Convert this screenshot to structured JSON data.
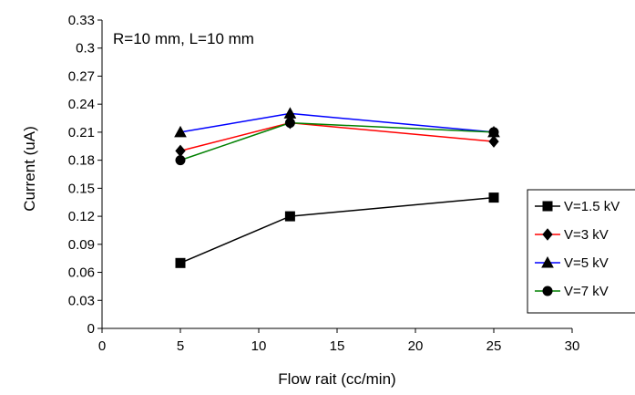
{
  "chart_data": {
    "type": "line",
    "title": "",
    "annotation": "R=10 mm, L=10 mm",
    "xlabel": "Flow rait (cc/min)",
    "ylabel": "Current (uA)",
    "xlim": [
      0,
      30
    ],
    "ylim": [
      0,
      0.33
    ],
    "xticks": [
      "0",
      "5",
      "10",
      "15",
      "20",
      "25",
      "30"
    ],
    "yticks": [
      "0",
      "0.03",
      "0.06",
      "0.09",
      "0.12",
      "0.15",
      "0.18",
      "0.21",
      "0.24",
      "0.27",
      "0.3",
      "0.33"
    ],
    "x": [
      5,
      12,
      25
    ],
    "grid": false,
    "legend_position": "right",
    "series": [
      {
        "name": "V=1.5 kV",
        "values": [
          0.07,
          0.12,
          0.14
        ],
        "color": "#000000",
        "marker": "square"
      },
      {
        "name": "V=3 kV",
        "values": [
          0.19,
          0.22,
          0.2
        ],
        "color": "#ff0000",
        "marker": "diamond"
      },
      {
        "name": "V=5 kV",
        "values": [
          0.21,
          0.23,
          0.21
        ],
        "color": "#0000ff",
        "marker": "triangle"
      },
      {
        "name": "V=7 kV",
        "values": [
          0.18,
          0.22,
          0.21
        ],
        "color": "#008000",
        "marker": "circle"
      }
    ]
  }
}
